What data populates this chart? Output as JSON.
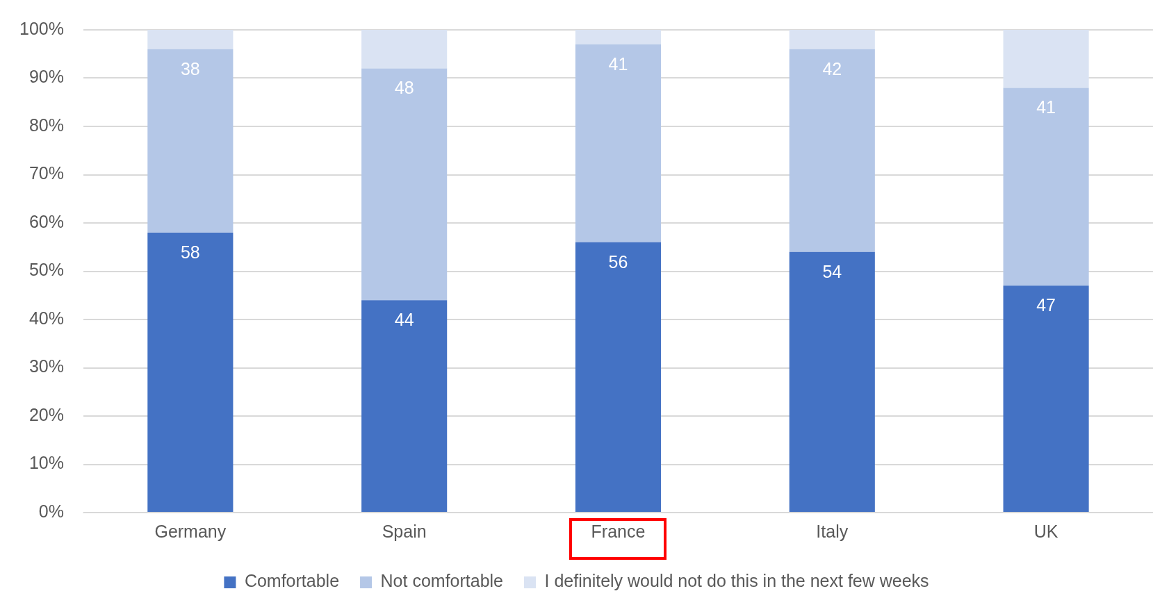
{
  "chart_data": {
    "type": "bar",
    "stacked": true,
    "categories": [
      "Germany",
      "Spain",
      "France",
      "Italy",
      "UK"
    ],
    "series": [
      {
        "name": "Comfortable",
        "color": "#4472c4",
        "values": [
          58,
          44,
          56,
          54,
          47
        ],
        "value_labels": [
          "58",
          "44",
          "56",
          "54",
          "47"
        ]
      },
      {
        "name": "Not comfortable",
        "color": "#b4c7e7",
        "values": [
          38,
          48,
          41,
          42,
          41
        ],
        "value_labels": [
          "38",
          "48",
          "41",
          "42",
          "41"
        ]
      },
      {
        "name": "I definitely would not do this in the next few weeks",
        "color": "#dae3f3",
        "values": [
          4,
          8,
          3,
          4,
          12
        ]
      }
    ],
    "ylim": [
      0,
      100
    ],
    "yticks": [
      {
        "value": 0,
        "label": "0%"
      },
      {
        "value": 10,
        "label": "10%"
      },
      {
        "value": 20,
        "label": "20%"
      },
      {
        "value": 30,
        "label": "30%"
      },
      {
        "value": 40,
        "label": "40%"
      },
      {
        "value": 50,
        "label": "50%"
      },
      {
        "value": 60,
        "label": "60%"
      },
      {
        "value": 70,
        "label": "70%"
      },
      {
        "value": 80,
        "label": "80%"
      },
      {
        "value": 90,
        "label": "90%"
      },
      {
        "value": 100,
        "label": "100%"
      }
    ],
    "grid": "y",
    "legend": "bottom"
  }
}
